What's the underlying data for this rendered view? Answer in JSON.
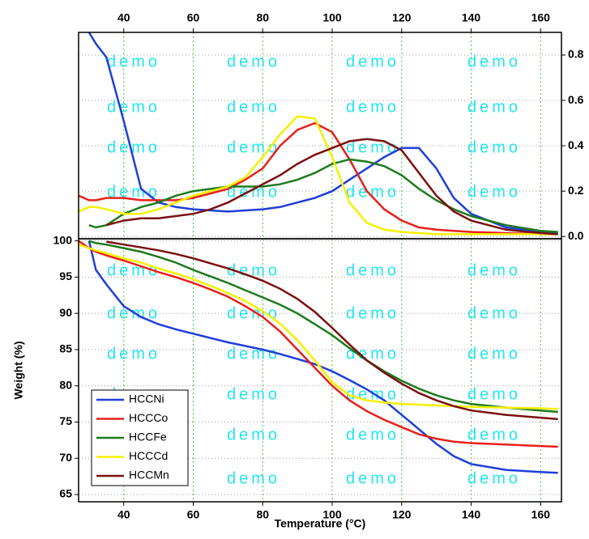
{
  "watermark": "demo",
  "chart_data": [
    {
      "type": "line",
      "xaxis_position": "top",
      "yaxis_position": "right",
      "grid": true,
      "x": [
        27,
        30,
        32,
        35,
        40,
        45,
        50,
        55,
        60,
        65,
        70,
        75,
        80,
        85,
        90,
        95,
        100,
        105,
        110,
        115,
        120,
        125,
        130,
        135,
        140,
        150,
        160,
        165
      ],
      "xlim": [
        27,
        166
      ],
      "xticks": [
        40,
        60,
        80,
        100,
        120,
        140,
        160
      ],
      "ylim": [
        -0.01,
        0.9
      ],
      "yticks": [
        {
          "value": 0,
          "label": "0.0"
        },
        0.2,
        0.4,
        0.6,
        0.8
      ],
      "series": [
        {
          "color": "#1f3fd8",
          "values": [
            null,
            0.9,
            0.85,
            0.79,
            0.51,
            0.21,
            0.15,
            0.13,
            0.12,
            0.115,
            0.11,
            0.115,
            0.12,
            0.13,
            0.15,
            0.17,
            0.2,
            0.25,
            0.3,
            0.35,
            0.39,
            0.39,
            0.3,
            0.17,
            0.1,
            0.04,
            0.02,
            0.015
          ]
        },
        {
          "color": "#e8211b",
          "values": [
            0.18,
            0.16,
            0.16,
            0.17,
            0.17,
            0.16,
            0.16,
            0.16,
            0.17,
            0.19,
            0.21,
            0.25,
            0.3,
            0.4,
            0.47,
            0.5,
            0.46,
            0.34,
            0.2,
            0.12,
            0.07,
            0.04,
            0.03,
            0.025,
            0.02,
            0.015,
            0.01,
            0.01
          ]
        },
        {
          "color": "#1e7a1e",
          "values": [
            null,
            0.05,
            0.04,
            0.05,
            0.1,
            0.13,
            0.15,
            0.18,
            0.2,
            0.21,
            0.22,
            0.22,
            0.22,
            0.23,
            0.25,
            0.28,
            0.32,
            0.34,
            0.33,
            0.31,
            0.27,
            0.21,
            0.16,
            0.12,
            0.09,
            0.05,
            0.025,
            0.02
          ]
        },
        {
          "color": "#f5f000",
          "values": [
            0.11,
            0.13,
            0.13,
            0.12,
            0.1,
            0.1,
            0.12,
            0.15,
            0.18,
            0.2,
            0.22,
            0.26,
            0.35,
            0.45,
            0.53,
            0.52,
            0.35,
            0.15,
            0.06,
            0.03,
            0.02,
            0.015,
            0.01,
            0.01,
            0.01,
            0.01,
            0.01,
            0.01
          ]
        },
        {
          "color": "#7a1010",
          "values": [
            null,
            null,
            null,
            0.05,
            0.07,
            0.08,
            0.08,
            0.09,
            0.1,
            0.12,
            0.15,
            0.19,
            0.23,
            0.27,
            0.32,
            0.36,
            0.39,
            0.42,
            0.43,
            0.42,
            0.38,
            0.28,
            0.18,
            0.11,
            0.07,
            0.03,
            0.015,
            0.01
          ]
        }
      ]
    },
    {
      "type": "line",
      "xaxis_position": "bottom",
      "yaxis_position": "left",
      "grid": true,
      "legend": "lower left",
      "x_label": "Temperature (°C)",
      "y_label": "Weight (%)",
      "x": [
        27,
        30,
        32,
        35,
        40,
        45,
        50,
        55,
        60,
        65,
        70,
        75,
        80,
        85,
        90,
        95,
        100,
        105,
        110,
        115,
        120,
        125,
        130,
        135,
        140,
        150,
        160,
        165
      ],
      "xlim": [
        27,
        166
      ],
      "xticks": [
        40,
        60,
        80,
        100,
        120,
        140,
        160
      ],
      "ylim": [
        64,
        100.3
      ],
      "yticks": [
        65,
        70,
        75,
        80,
        85,
        90,
        95,
        100
      ],
      "series": [
        {
          "name": "HCCNi",
          "color": "#1f3fd8",
          "values": [
            null,
            100,
            96,
            94,
            91,
            89.5,
            88.5,
            87.8,
            87.2,
            86.6,
            86,
            85.5,
            85,
            84.4,
            83.7,
            83,
            82,
            80.8,
            79.5,
            78,
            76,
            74,
            72,
            70.3,
            69.2,
            68.4,
            68.1,
            68
          ]
        },
        {
          "name": "HCCCo",
          "color": "#e8211b",
          "values": [
            100,
            99,
            98.5,
            98,
            97.3,
            96.5,
            95.7,
            95,
            94.2,
            93.3,
            92.3,
            91,
            89.5,
            87.5,
            85,
            82.5,
            80,
            78,
            76.5,
            75.3,
            74.3,
            73.3,
            72.7,
            72.3,
            72.1,
            71.9,
            71.7,
            71.6
          ]
        },
        {
          "name": "HCCFe",
          "color": "#1e7a1e",
          "values": [
            null,
            100,
            99.7,
            99.5,
            99,
            98.5,
            97.8,
            97,
            96,
            95.1,
            94.2,
            93.2,
            92.2,
            91.2,
            90,
            88.5,
            87,
            85.2,
            83.5,
            82,
            80.7,
            79.6,
            78.7,
            78,
            77.5,
            77,
            76.6,
            76.4
          ]
        },
        {
          "name": "HCCCd",
          "color": "#f5f000",
          "values": [
            99.5,
            99,
            98.7,
            98.3,
            97.6,
            97,
            96.2,
            95.5,
            94.7,
            93.8,
            92.8,
            91.7,
            90.3,
            88.6,
            86.3,
            83.5,
            80.5,
            78.7,
            78,
            77.7,
            77.5,
            77.4,
            77.3,
            77.2,
            77.1,
            77,
            76.9,
            76.8
          ]
        },
        {
          "name": "HCCMn",
          "color": "#7a1010",
          "values": [
            null,
            null,
            null,
            99.9,
            99.5,
            99.1,
            98.7,
            98.2,
            97.6,
            96.9,
            96.2,
            95.4,
            94.5,
            93.4,
            92,
            90.2,
            88,
            85.7,
            83.5,
            81.8,
            80.3,
            79,
            78,
            77.2,
            76.6,
            76,
            75.6,
            75.4
          ]
        }
      ]
    }
  ]
}
